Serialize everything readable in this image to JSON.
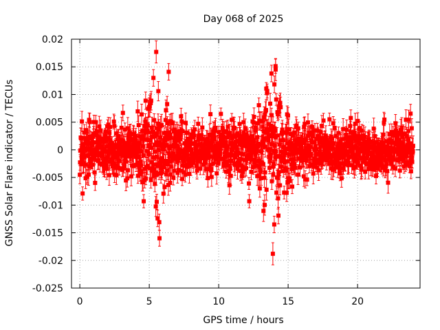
{
  "chart_data": {
    "type": "scatter",
    "title": "Day 068 of 2025",
    "xlabel": "GPS time / hours",
    "ylabel": "GNSS Solar Flare indicator / TECUs",
    "xlim": [
      -0.6,
      24.5
    ],
    "ylim": [
      -0.025,
      0.02
    ],
    "xticks": [
      0,
      5,
      10,
      15,
      20
    ],
    "xtick_labels": [
      "0",
      "5",
      "10",
      "15",
      "20"
    ],
    "yticks": [
      -0.025,
      -0.02,
      -0.015,
      -0.01,
      -0.005,
      0,
      0.005,
      0.01,
      0.015,
      0.02
    ],
    "ytick_labels": [
      "-0.025",
      "-0.02",
      "-0.015",
      "-0.01",
      "-0.005",
      "0",
      "0.005",
      "0.01",
      "0.015",
      "0.02"
    ],
    "grid": true,
    "series_color": "#ff0000",
    "marker": "square",
    "error_bars": true,
    "series": [
      {
        "name": "GNSS Solar Flare indicator",
        "points_notable": [
          {
            "x": 5.5,
            "y": 0.0177,
            "err": 0.002
          },
          {
            "x": 5.3,
            "y": 0.013,
            "err": 0.0015
          },
          {
            "x": 6.4,
            "y": 0.0141,
            "err": 0.0015
          },
          {
            "x": 14.1,
            "y": 0.0145,
            "err": 0.002
          },
          {
            "x": 13.8,
            "y": 0.0138,
            "err": 0.0015
          },
          {
            "x": 13.9,
            "y": -0.0188,
            "err": 0.002
          },
          {
            "x": 14.0,
            "y": -0.0135,
            "err": 0.0015
          },
          {
            "x": 14.3,
            "y": -0.0119,
            "err": 0.0015
          },
          {
            "x": 5.6,
            "y": -0.0124,
            "err": 0.0015
          },
          {
            "x": 12.2,
            "y": -0.0093,
            "err": 0.0012
          },
          {
            "x": 0.2,
            "y": -0.0079,
            "err": 0.0012
          },
          {
            "x": 4.6,
            "y": -0.0093,
            "err": 0.0012
          }
        ],
        "bulk": {
          "x_range": [
            0,
            24
          ],
          "samples": 1440,
          "base_sigma": 0.0022,
          "error_bar_mean": 0.0015,
          "activity_windows": [
            {
              "center": 5.6,
              "width": 0.9,
              "amplitude": 0.0035
            },
            {
              "center": 13.8,
              "width": 1.0,
              "amplitude": 0.0035
            }
          ]
        }
      }
    ]
  }
}
